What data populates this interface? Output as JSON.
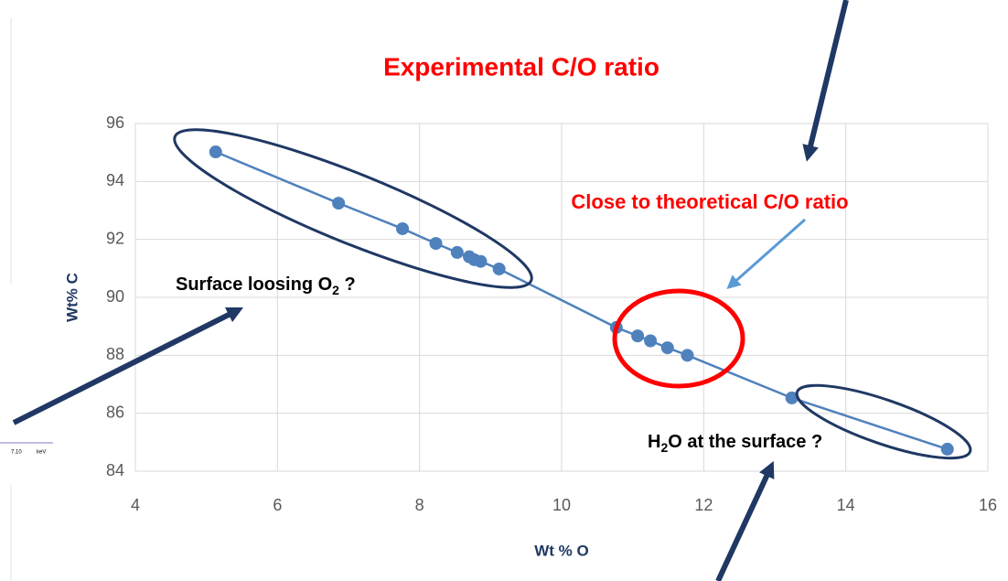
{
  "chart_data": {
    "type": "scatter",
    "title": "Experimental C/O ratio",
    "x_label": "Wt % O",
    "y_label": "Wt% C",
    "x": [
      5.13,
      6.86,
      7.76,
      8.23,
      8.53,
      8.7,
      8.77,
      8.86,
      9.12,
      10.77,
      11.07,
      11.25,
      11.49,
      11.77,
      13.24,
      15.43
    ],
    "series": [
      {
        "color": "#4f81bd",
        "values": [
          95.02,
          93.25,
          92.37,
          91.86,
          91.55,
          91.4,
          91.3,
          91.24,
          90.98,
          88.96,
          88.67,
          88.5,
          88.26,
          88.0,
          86.53,
          84.76
        ]
      }
    ],
    "xlim": [
      4,
      16
    ],
    "xticks": [
      4,
      6,
      8,
      10,
      12,
      14,
      16
    ],
    "ylim": [
      84,
      96
    ],
    "yticks": [
      84,
      86,
      88,
      90,
      92,
      94,
      96
    ],
    "grid": true,
    "annotations": [
      {
        "text": "Close to theoretical C/O ratio",
        "color": "#ff0000"
      },
      {
        "text": "Surface loosing O",
        "sub": "2",
        "tail": " ?",
        "color": "#000000"
      },
      {
        "lead": "H",
        "sub": "2",
        "text": "O at the surface ?",
        "color": "#000000"
      }
    ],
    "fragments": [
      "7.10",
      "keV"
    ]
  }
}
